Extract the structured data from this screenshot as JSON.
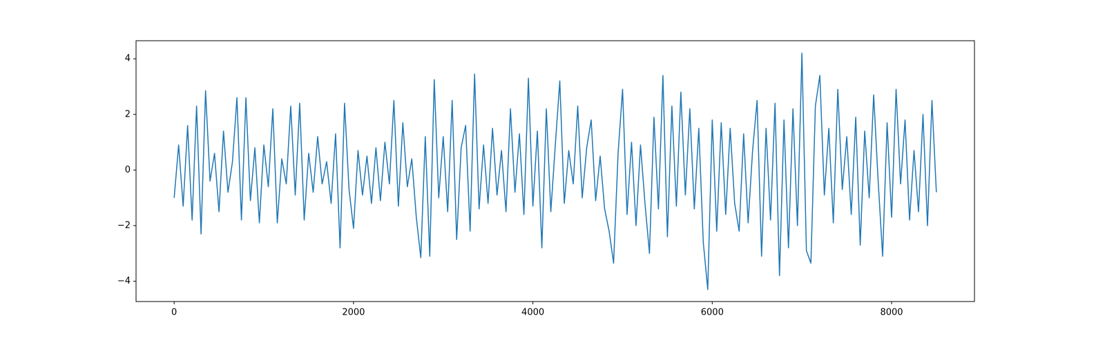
{
  "chart_data": {
    "type": "line",
    "color": "#1f77b4",
    "xlim": [
      -425,
      8924
    ],
    "ylim": [
      -4.73,
      4.65
    ],
    "xticks": [
      0,
      2000,
      4000,
      6000,
      8000
    ],
    "yticks": [
      {
        "value": -4,
        "label": "−4"
      },
      {
        "value": -2,
        "label": "−2"
      },
      0,
      2,
      4
    ],
    "x": [
      0,
      50,
      100,
      150,
      200,
      250,
      300,
      350,
      400,
      450,
      500,
      550,
      600,
      650,
      700,
      750,
      800,
      850,
      900,
      950,
      1000,
      1050,
      1100,
      1150,
      1200,
      1250,
      1300,
      1350,
      1400,
      1450,
      1500,
      1550,
      1600,
      1650,
      1700,
      1750,
      1800,
      1850,
      1900,
      1950,
      2000,
      2050,
      2100,
      2150,
      2200,
      2250,
      2300,
      2350,
      2400,
      2450,
      2500,
      2550,
      2600,
      2650,
      2700,
      2750,
      2800,
      2850,
      2900,
      2950,
      3000,
      3050,
      3100,
      3150,
      3200,
      3250,
      3300,
      3350,
      3400,
      3450,
      3500,
      3550,
      3600,
      3650,
      3700,
      3750,
      3800,
      3850,
      3900,
      3950,
      4000,
      4050,
      4100,
      4150,
      4200,
      4250,
      4300,
      4350,
      4400,
      4450,
      4500,
      4550,
      4600,
      4650,
      4700,
      4750,
      4800,
      4850,
      4900,
      4950,
      5000,
      5050,
      5100,
      5150,
      5200,
      5250,
      5300,
      5350,
      5400,
      5450,
      5500,
      5550,
      5600,
      5650,
      5700,
      5750,
      5800,
      5850,
      5900,
      5950,
      6000,
      6050,
      6100,
      6150,
      6200,
      6250,
      6300,
      6350,
      6400,
      6450,
      6500,
      6550,
      6600,
      6650,
      6700,
      6750,
      6800,
      6850,
      6900,
      6950,
      7000,
      7050,
      7100,
      7150,
      7200,
      7250,
      7300,
      7350,
      7400,
      7450,
      7500,
      7550,
      7600,
      7650,
      7700,
      7750,
      7800,
      7850,
      7900,
      7950,
      8000,
      8050,
      8100,
      8150,
      8200,
      8250,
      8300,
      8350,
      8400,
      8450,
      8499
    ],
    "values": [
      -1,
      0.9,
      -1.3,
      1.6,
      -1.8,
      2.3,
      -2.3,
      2.85,
      -0.4,
      0.6,
      -1.5,
      1.4,
      -0.8,
      0.3,
      2.6,
      -1.8,
      2.6,
      -1.1,
      0.8,
      -1.9,
      0.9,
      -0.6,
      2.2,
      -1.9,
      0.4,
      -0.5,
      2.3,
      -0.9,
      2.4,
      -1.8,
      0.6,
      -0.8,
      1.2,
      -0.5,
      0.3,
      -1.2,
      1.3,
      -2.8,
      2.4,
      -0.7,
      -2.1,
      0.7,
      -0.9,
      0.5,
      -1.2,
      0.8,
      -1.1,
      1.0,
      -0.5,
      2.5,
      -1.3,
      1.7,
      -0.6,
      0.4,
      -1.7,
      -3.15,
      1.2,
      -3.1,
      3.25,
      -1.0,
      1.2,
      -1.5,
      2.5,
      -2.5,
      0.8,
      1.6,
      -2.2,
      3.45,
      -1.4,
      0.9,
      -1.2,
      1.5,
      -0.9,
      0.7,
      -1.5,
      2.2,
      -0.8,
      1.3,
      -1.6,
      3.3,
      -1.3,
      1.4,
      -2.8,
      2.2,
      -1.5,
      0.9,
      3.2,
      -1.2,
      0.7,
      -0.5,
      2.3,
      -1.0,
      0.8,
      1.8,
      -1.1,
      0.5,
      -1.4,
      -2.2,
      -3.35,
      0.6,
      2.9,
      -1.6,
      1.0,
      -2.0,
      0.9,
      -1.2,
      -3.0,
      1.9,
      -1.4,
      3.4,
      -2.4,
      2.3,
      -1.3,
      2.8,
      -0.9,
      2.2,
      -1.4,
      1.5,
      -2.6,
      -4.3,
      1.8,
      -2.2,
      1.7,
      -1.6,
      1.5,
      -1.2,
      -2.2,
      1.3,
      -1.9,
      0.7,
      2.5,
      -3.1,
      1.5,
      -1.8,
      2.4,
      -3.8,
      1.8,
      -2.8,
      2.2,
      -2.0,
      4.2,
      -2.9,
      -3.35,
      2.3,
      3.4,
      -0.9,
      1.5,
      -1.9,
      2.9,
      -0.7,
      1.2,
      -1.6,
      1.9,
      -2.7,
      1.4,
      -1.0,
      2.7,
      -0.4,
      -3.1,
      1.7,
      -1.7,
      2.9,
      -0.5,
      1.8,
      -1.8,
      0.7,
      -1.5,
      2.0,
      -2.0,
      2.5,
      -0.8
    ]
  }
}
